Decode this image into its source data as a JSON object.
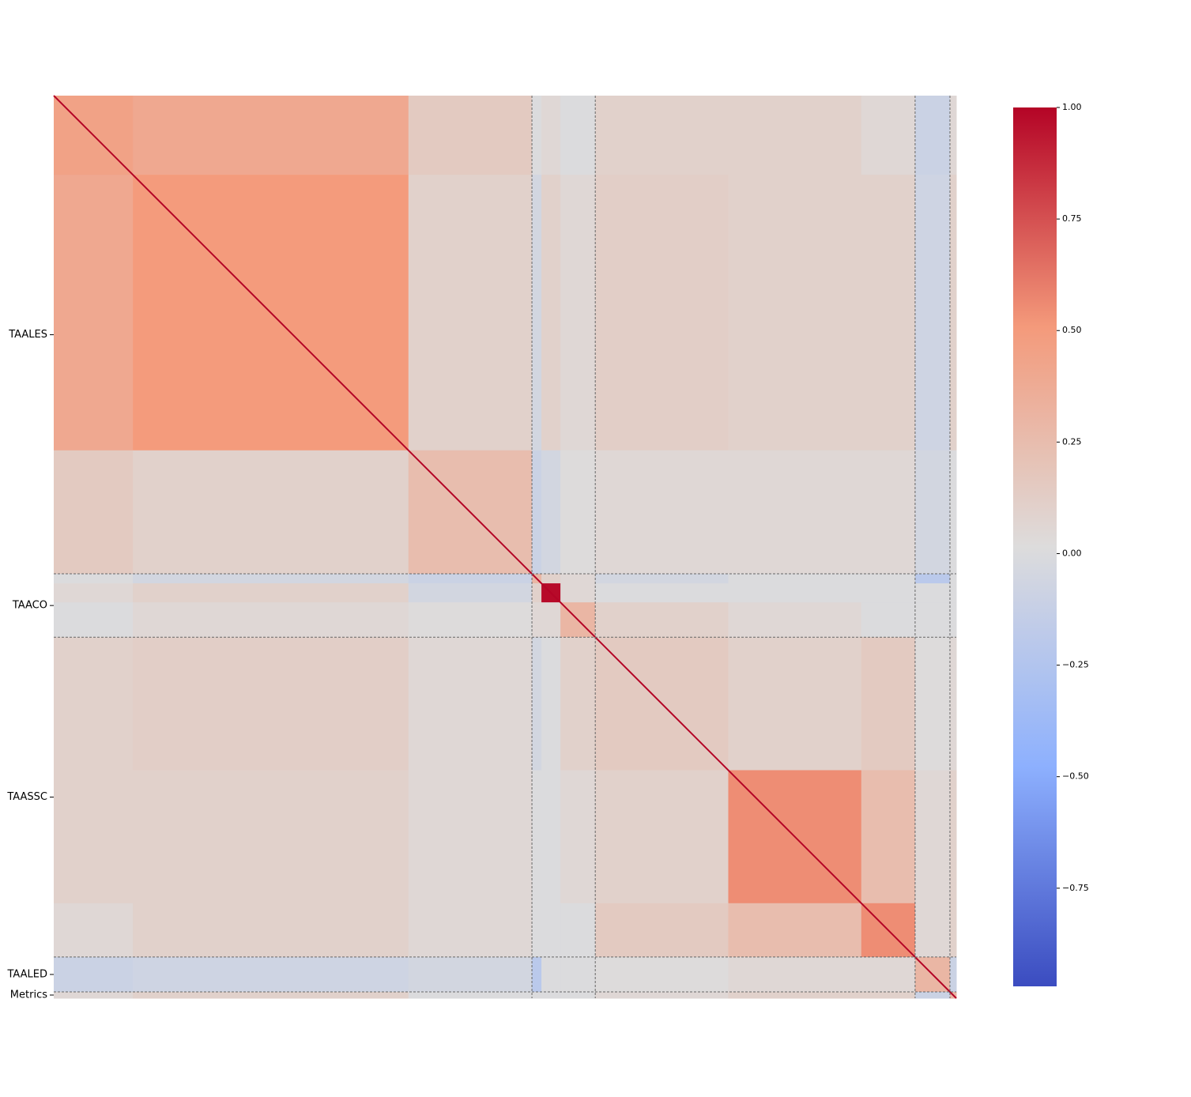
{
  "chart_data": {
    "type": "heatmap",
    "categories": [
      "TAALES",
      "TAACO",
      "TAASSC",
      "TAALED",
      "Metrics"
    ],
    "segment_sizes": [
      25,
      87,
      39,
      3,
      6,
      11,
      42,
      42,
      17,
      11,
      2
    ],
    "segment_groups": [
      0,
      0,
      0,
      1,
      1,
      1,
      2,
      2,
      2,
      3,
      4
    ],
    "values": [
      [
        0.45,
        0.4,
        0.15,
        0.0,
        0.05,
        0.0,
        0.1,
        0.1,
        0.05,
        -0.1,
        0.05
      ],
      [
        0.4,
        0.5,
        0.1,
        -0.05,
        0.1,
        0.05,
        0.12,
        0.1,
        0.1,
        -0.08,
        0.1
      ],
      [
        0.15,
        0.1,
        0.25,
        -0.1,
        -0.05,
        0.02,
        0.05,
        0.05,
        0.05,
        -0.05,
        0.0
      ],
      [
        0.0,
        -0.05,
        -0.1,
        0.3,
        0.1,
        0.05,
        -0.05,
        0.0,
        0.0,
        -0.2,
        0.0
      ],
      [
        0.05,
        0.1,
        -0.05,
        0.1,
        0.98,
        0.05,
        0.0,
        0.0,
        0.0,
        0.0,
        0.0
      ],
      [
        0.0,
        0.05,
        0.02,
        0.05,
        0.05,
        0.3,
        0.1,
        0.05,
        0.0,
        0.0,
        0.0
      ],
      [
        0.1,
        0.12,
        0.05,
        -0.05,
        0.0,
        0.1,
        0.15,
        0.1,
        0.15,
        0.02,
        0.05
      ],
      [
        0.1,
        0.1,
        0.05,
        0.0,
        0.0,
        0.05,
        0.1,
        0.55,
        0.25,
        0.05,
        0.1
      ],
      [
        0.05,
        0.1,
        0.05,
        0.0,
        0.0,
        0.0,
        0.15,
        0.25,
        0.55,
        0.05,
        0.1
      ],
      [
        -0.1,
        -0.08,
        -0.05,
        -0.2,
        0.0,
        0.0,
        0.02,
        0.05,
        0.05,
        0.3,
        -0.1
      ],
      [
        0.05,
        0.1,
        0.0,
        0.0,
        0.0,
        0.0,
        0.05,
        0.1,
        0.1,
        -0.1,
        0.3
      ]
    ],
    "diagonal": 1,
    "colormap": "coolwarm",
    "clim": [
      -0.97,
      1
    ],
    "colorbar_ticks": [
      {
        "value": 1,
        "label": "1.00"
      },
      {
        "value": 0.75,
        "label": "0.75"
      },
      {
        "value": 0.5,
        "label": "0.50"
      },
      {
        "value": 0.25,
        "label": "0.25"
      },
      {
        "value": 0,
        "label": "0.00"
      },
      {
        "value": -0.25,
        "label": "−0.25"
      },
      {
        "value": -0.5,
        "label": "−0.50"
      },
      {
        "value": -0.75,
        "label": "−0.75"
      }
    ]
  }
}
